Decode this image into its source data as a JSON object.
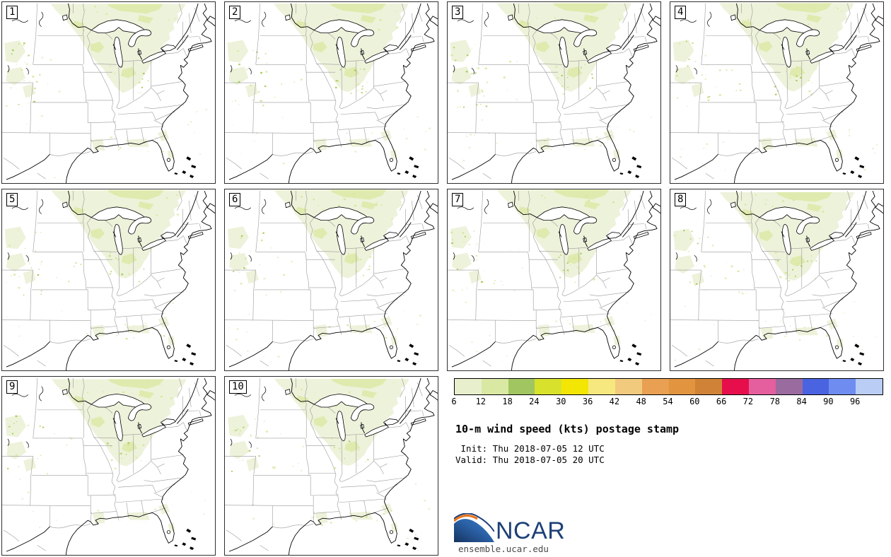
{
  "chart_data": {
    "type": "heatmap",
    "chart_kind": "ensemble postage stamp maps",
    "title": "10-m wind speed (kts) postage stamp",
    "init_line": " Init: Thu 2018-07-05 12 UTC",
    "valid_line": "Valid: Thu 2018-07-05 20 UTC",
    "variable": "10-m wind speed",
    "units": "kts",
    "panels": [
      {
        "member": "1"
      },
      {
        "member": "2"
      },
      {
        "member": "3"
      },
      {
        "member": "4"
      },
      {
        "member": "5"
      },
      {
        "member": "6"
      },
      {
        "member": "7"
      },
      {
        "member": "8"
      },
      {
        "member": "9"
      },
      {
        "member": "10"
      }
    ],
    "colorbar": {
      "ticks": [
        "6",
        "12",
        "18",
        "24",
        "30",
        "36",
        "42",
        "48",
        "54",
        "60",
        "66",
        "72",
        "78",
        "84",
        "90",
        "96"
      ],
      "colors": [
        "#e8efcd",
        "#d9e8a2",
        "#a0c561",
        "#d8e22c",
        "#f3e504",
        "#f6e87e",
        "#f1ca7d",
        "#e9a052",
        "#e2943e",
        "#d08336",
        "#e60f4c",
        "#e55e9d",
        "#9a6b9f",
        "#4a63e0",
        "#6f8cf0",
        "#bacdf5"
      ]
    }
  },
  "branding": {
    "logo_text": "NCAR",
    "site": "ensemble.ucar.edu"
  },
  "colors": {
    "shade_light": "#edf2da",
    "shade_mid": "#dfeaae",
    "speckle_light": "#e7efcc",
    "speckle_mid": "#d7e79b",
    "speckle_dark": "#accf5f",
    "state_line": "#9a9a9a",
    "coast_line": "#000000",
    "logo_navy": "#1e4077",
    "logo_orange": "#e87722"
  }
}
